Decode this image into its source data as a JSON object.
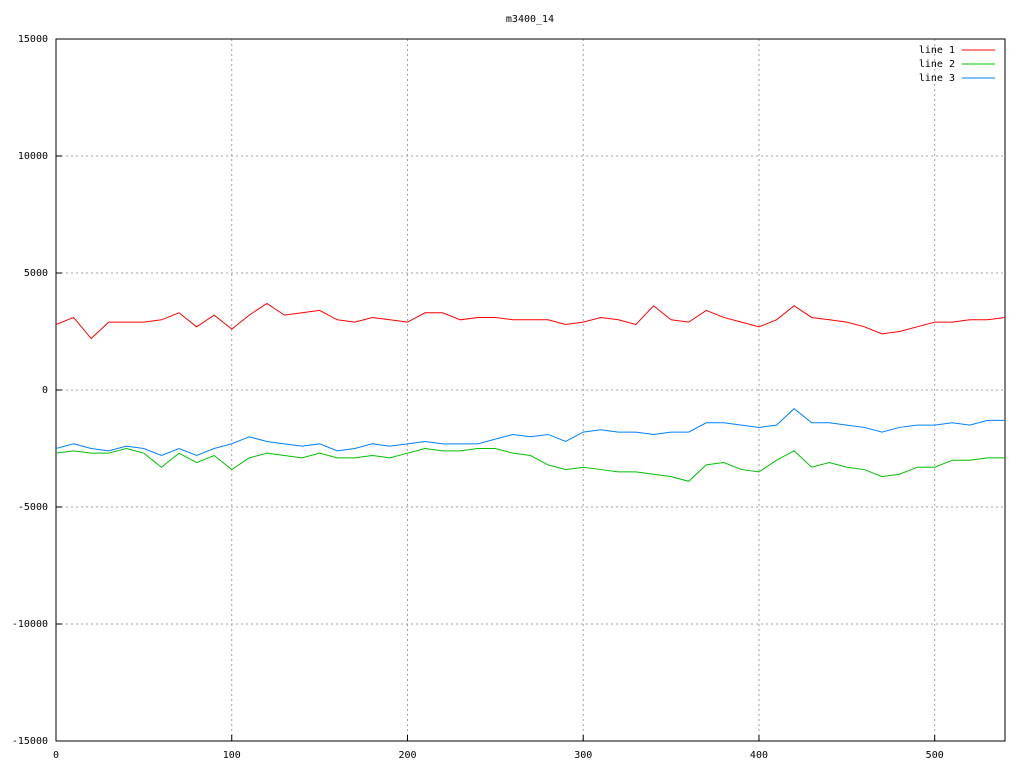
{
  "chart_data": {
    "type": "line",
    "title": "m3400_14",
    "x": [
      0,
      10,
      20,
      30,
      40,
      50,
      60,
      70,
      80,
      90,
      100,
      110,
      120,
      130,
      140,
      150,
      160,
      170,
      180,
      190,
      200,
      210,
      220,
      230,
      240,
      250,
      260,
      270,
      280,
      290,
      300,
      310,
      320,
      330,
      340,
      350,
      360,
      370,
      380,
      390,
      400,
      410,
      420,
      430,
      440,
      450,
      460,
      470,
      480,
      490,
      500,
      510,
      520,
      530,
      540
    ],
    "series": [
      {
        "name": "line 1",
        "color": "#ff0000",
        "values": [
          2800,
          3100,
          2200,
          2900,
          2900,
          2900,
          3000,
          3300,
          2700,
          3200,
          2600,
          3200,
          3700,
          3200,
          3300,
          3400,
          3000,
          2900,
          3100,
          3000,
          2900,
          3300,
          3300,
          3000,
          3100,
          3100,
          3000,
          3000,
          3000,
          2800,
          2900,
          3100,
          3000,
          2800,
          3600,
          3000,
          2900,
          3400,
          3100,
          2900,
          2700,
          3000,
          3600,
          3100,
          3000,
          2900,
          2700,
          2400,
          2500,
          2700,
          2900,
          2900,
          3000,
          3000,
          3100
        ]
      },
      {
        "name": "line 2",
        "color": "#00c000",
        "values": [
          -2700,
          -2600,
          -2700,
          -2700,
          -2500,
          -2700,
          -3300,
          -2700,
          -3100,
          -2800,
          -3400,
          -2900,
          -2700,
          -2800,
          -2900,
          -2700,
          -2900,
          -2900,
          -2800,
          -2900,
          -2700,
          -2500,
          -2600,
          -2600,
          -2500,
          -2500,
          -2700,
          -2800,
          -3200,
          -3400,
          -3300,
          -3400,
          -3500,
          -3500,
          -3600,
          -3700,
          -3900,
          -3200,
          -3100,
          -3400,
          -3500,
          -3000,
          -2600,
          -3300,
          -3100,
          -3300,
          -3400,
          -3700,
          -3600,
          -3300,
          -3300,
          -3000,
          -3000,
          -2900,
          -2900
        ]
      },
      {
        "name": "line 3",
        "color": "#0080ff",
        "values": [
          -2500,
          -2300,
          -2500,
          -2600,
          -2400,
          -2500,
          -2800,
          -2500,
          -2800,
          -2500,
          -2300,
          -2000,
          -2200,
          -2300,
          -2400,
          -2300,
          -2600,
          -2500,
          -2300,
          -2400,
          -2300,
          -2200,
          -2300,
          -2300,
          -2300,
          -2100,
          -1900,
          -2000,
          -1900,
          -2200,
          -1800,
          -1700,
          -1800,
          -1800,
          -1900,
          -1800,
          -1800,
          -1400,
          -1400,
          -1500,
          -1600,
          -1500,
          -800,
          -1400,
          -1400,
          -1500,
          -1600,
          -1800,
          -1600,
          -1500,
          -1500,
          -1400,
          -1500,
          -1300,
          -1300
        ]
      }
    ],
    "xlim": [
      0,
      540
    ],
    "xticks": [
      0,
      100,
      200,
      300,
      400,
      500
    ],
    "ylim": [
      -15000,
      15000
    ],
    "yticks": [
      -15000,
      -10000,
      -5000,
      0,
      5000,
      10000,
      15000
    ],
    "grid": true,
    "legend": "top-right"
  }
}
